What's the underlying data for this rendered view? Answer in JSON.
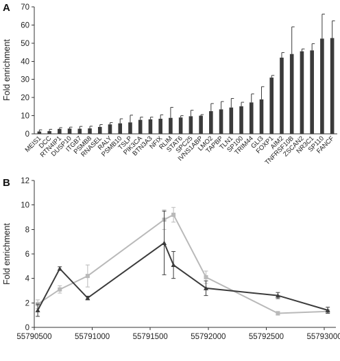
{
  "chart_data": [
    {
      "panel": "A",
      "type": "bar",
      "ylabel": "Fold enrichment",
      "ylim": [
        0,
        70
      ],
      "yticks": [
        0,
        10,
        20,
        30,
        40,
        50,
        60,
        70
      ],
      "bar_color": "#3b3b3b",
      "categories": [
        "MEIS1",
        "DCC",
        "RTN4IP1",
        "DUSP10",
        "ITGB7",
        "PSMB8",
        "RNASEL",
        "RALY",
        "PSMB10",
        "TSLP",
        "PIK3CA",
        "BTN3A3",
        "NFIX",
        "RLIM",
        "STAT6",
        "SPC25",
        "IVNS1ABP",
        "LMO2",
        "TAPBP",
        "TLN1",
        "SP100",
        "TRIM44",
        "GLI3",
        "FOXP1",
        "AIM2",
        "TNFRSF10B",
        "ZSCAN2",
        "NR3C1",
        "SP110",
        "FANCF"
      ],
      "values": [
        1.3,
        1.5,
        2.7,
        2.9,
        2.8,
        3.0,
        3.8,
        5.2,
        5.8,
        6.3,
        7.7,
        8.0,
        8.3,
        8.8,
        9.0,
        9.7,
        10.0,
        12.5,
        13.5,
        14.5,
        15.2,
        17.3,
        19.0,
        31.0,
        42.0,
        44.0,
        45.5,
        46.0,
        52.5,
        52.8
      ],
      "errors": [
        0.9,
        1.0,
        0.7,
        0.8,
        1.3,
        1.2,
        1.3,
        1.0,
        2.5,
        4.0,
        1.5,
        1.2,
        2.2,
        5.8,
        1.0,
        3.3,
        0.6,
        4.2,
        4.3,
        5.0,
        2.2,
        4.7,
        7.0,
        1.2,
        2.8,
        15.0,
        1.3,
        3.7,
        13.5,
        9.5
      ]
    },
    {
      "panel": "B",
      "type": "line",
      "ylabel": "Fold enrichment",
      "ylim": [
        0,
        12
      ],
      "yticks": [
        0,
        2,
        4,
        6,
        8,
        10,
        12
      ],
      "xlim": [
        55790500,
        55793100
      ],
      "xticks": [
        55790500,
        55791000,
        55791500,
        55792000,
        55792500,
        55793000
      ],
      "series": [
        {
          "color": "#3b3b3b",
          "marker": "triangle",
          "x": [
            55790530,
            55790720,
            55790960,
            55791620,
            55791700,
            55791980,
            55792600,
            55793030
          ],
          "y": [
            1.4,
            4.8,
            2.4,
            6.9,
            5.1,
            3.2,
            2.6,
            1.4
          ],
          "err": [
            0.5,
            0.15,
            0.15,
            2.6,
            1.1,
            0.6,
            0.25,
            0.25
          ]
        },
        {
          "color": "#b9b9b9",
          "marker": "square",
          "x": [
            55790530,
            55790720,
            55790960,
            55791620,
            55791700,
            55791980,
            55792600,
            55793030
          ],
          "y": [
            1.9,
            3.1,
            4.2,
            8.8,
            9.2,
            4.1,
            1.15,
            1.3
          ],
          "err": [
            0.35,
            0.3,
            0.9,
            0.8,
            0.6,
            0.5,
            0.15,
            0.15
          ]
        }
      ]
    }
  ]
}
